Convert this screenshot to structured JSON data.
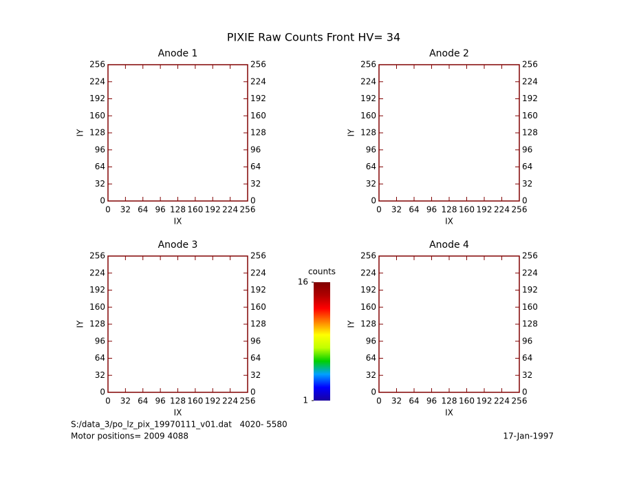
{
  "title": "PIXIE Raw Counts Front HV= 34",
  "chart_data": [
    {
      "type": "image",
      "title": "Anode 1",
      "x_label": "IX",
      "y_label": "IY",
      "xlim": [
        0,
        256
      ],
      "ylim": [
        0,
        256
      ],
      "xticks": [
        0,
        32,
        64,
        96,
        128,
        160,
        192,
        224,
        256
      ],
      "yticks": [
        0,
        32,
        64,
        96,
        128,
        160,
        192,
        224,
        256
      ]
    },
    {
      "type": "image",
      "title": "Anode 2",
      "x_label": "IX",
      "y_label": "IY",
      "xlim": [
        0,
        256
      ],
      "ylim": [
        0,
        256
      ],
      "xticks": [
        0,
        32,
        64,
        96,
        128,
        160,
        192,
        224,
        256
      ],
      "yticks": [
        0,
        32,
        64,
        96,
        128,
        160,
        192,
        224,
        256
      ]
    },
    {
      "type": "image",
      "title": "Anode 3",
      "x_label": "IX",
      "y_label": "IY",
      "xlim": [
        0,
        256
      ],
      "ylim": [
        0,
        256
      ],
      "xticks": [
        0,
        32,
        64,
        96,
        128,
        160,
        192,
        224,
        256
      ],
      "yticks": [
        0,
        32,
        64,
        96,
        128,
        160,
        192,
        224,
        256
      ]
    },
    {
      "type": "image",
      "title": "Anode 4",
      "x_label": "IX",
      "y_label": "IY",
      "xlim": [
        0,
        256
      ],
      "ylim": [
        0,
        256
      ],
      "xticks": [
        0,
        32,
        64,
        96,
        128,
        160,
        192,
        224,
        256
      ],
      "yticks": [
        0,
        32,
        64,
        96,
        128,
        160,
        192,
        224,
        256
      ]
    }
  ],
  "colorbar": {
    "label": "counts",
    "lim": [
      1,
      16
    ],
    "ticks": [
      1,
      16
    ],
    "colors": [
      "#1a00a0",
      "#0000ff",
      "#00a0ff",
      "#00d000",
      "#c0ff00",
      "#ffff00",
      "#ff8000",
      "#ff0000",
      "#b00000",
      "#800000"
    ]
  },
  "footer": {
    "file": "S:/data_3/po_lz_pix_19970111_v01.dat   4020- 5580",
    "motor": "Motor positions= 2009 4088",
    "date": "17-Jan-1997"
  }
}
